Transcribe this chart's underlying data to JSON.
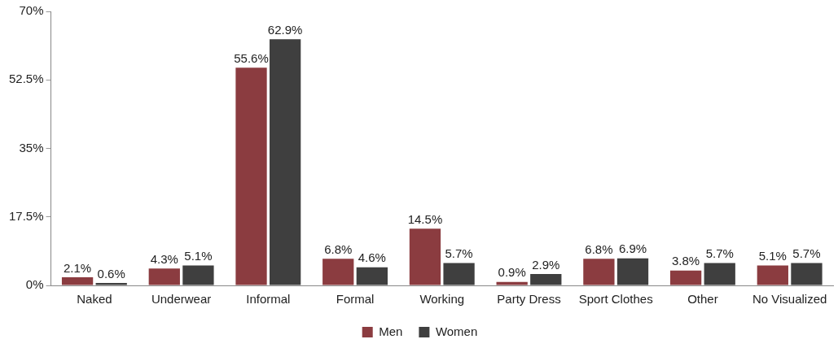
{
  "chart_data": {
    "type": "bar",
    "categories": [
      "Naked",
      "Underwear",
      "Informal",
      "Formal",
      "Working",
      "Party Dress",
      "Sport Clothes",
      "Other",
      "No Visualized"
    ],
    "series": [
      {
        "name": "Men",
        "color": "#8b3c40",
        "values": [
          2.1,
          4.3,
          55.6,
          6.8,
          14.5,
          0.9,
          6.8,
          3.8,
          5.1
        ],
        "value_labels": [
          "2.1%",
          "4.3%",
          "55.6%",
          "6.8%",
          "14.5%",
          "0.9%",
          "6.8%",
          "3.8%",
          "5.1%"
        ]
      },
      {
        "name": "Women",
        "color": "#3f3f3f",
        "values": [
          0.6,
          5.1,
          62.9,
          4.6,
          5.7,
          2.9,
          6.9,
          5.7,
          5.7
        ],
        "value_labels": [
          "0.6%",
          "5.1%",
          "62.9%",
          "4.6%",
          "5.7%",
          "2.9%",
          "6.9%",
          "5.7%",
          "5.7%"
        ]
      }
    ],
    "ylim": [
      0,
      70
    ],
    "yticks": [
      {
        "value": 0,
        "label": "0%"
      },
      {
        "value": 17.5,
        "label": "17.5%"
      },
      {
        "value": 35,
        "label": "35%"
      },
      {
        "value": 52.5,
        "label": "52.5%"
      },
      {
        "value": 70,
        "label": "70%"
      }
    ],
    "grid": false,
    "legend": "bottom"
  }
}
